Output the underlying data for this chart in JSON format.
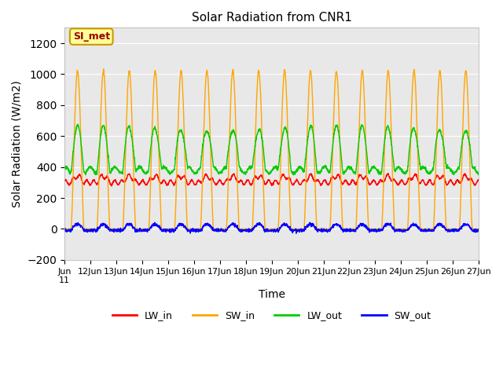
{
  "title": "Solar Radiation from CNR1",
  "xlabel": "Time",
  "ylabel": "Solar Radiation (W/m2)",
  "ylim": [
    -200,
    1300
  ],
  "yticks": [
    -200,
    0,
    200,
    400,
    600,
    800,
    1000,
    1200
  ],
  "start_day": 11,
  "end_day": 27,
  "n_days": 16,
  "colors": {
    "LW_in": "#ff0000",
    "SW_in": "#ffa500",
    "LW_out": "#00cc00",
    "SW_out": "#0000ff"
  },
  "background_color": "#ffffff",
  "plot_bg_color": "#e8e8e8",
  "annotation_text": "SI_met",
  "annotation_bg": "#ffff99",
  "annotation_edge": "#cc9900",
  "annotation_text_color": "#990000",
  "grid_color": "#ffffff",
  "lw_in_base": 300,
  "lw_in_day_amp": 40,
  "lw_out_base": 400,
  "lw_out_day_amp": 270,
  "sw_in_peak": 1020,
  "sw_out_peak": 30,
  "legend_labels": [
    "LW_in",
    "SW_in",
    "LW_out",
    "SW_out"
  ]
}
